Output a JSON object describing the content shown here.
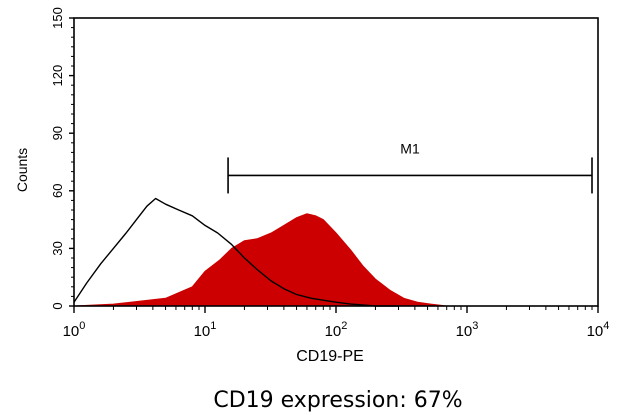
{
  "chart_data": {
    "type": "area",
    "xscale": "log",
    "xlim": [
      1,
      10000
    ],
    "ylim": [
      0,
      150
    ],
    "xlabel": "CD19-PE",
    "ylabel": "Counts",
    "caption": "CD19 expression: 67%",
    "x_ticks": [
      {
        "value": 1,
        "base": "10",
        "exp": "0"
      },
      {
        "value": 10,
        "base": "10",
        "exp": "1"
      },
      {
        "value": 100,
        "base": "10",
        "exp": "2"
      },
      {
        "value": 1000,
        "base": "10",
        "exp": "3"
      },
      {
        "value": 10000,
        "base": "10",
        "exp": "4"
      }
    ],
    "y_ticks": [
      {
        "value": 0,
        "label": "0"
      },
      {
        "value": 30,
        "label": "30"
      },
      {
        "value": 60,
        "label": "60"
      },
      {
        "value": 90,
        "label": "90"
      },
      {
        "value": 120,
        "label": "120"
      },
      {
        "value": 150,
        "label": "150"
      }
    ],
    "marker": {
      "label": "M1",
      "x_start": 15,
      "x_end": 9000,
      "y": 68
    },
    "series": [
      {
        "style": "filled",
        "color": "#cc0000",
        "x": [
          1,
          2,
          5,
          8,
          10,
          13,
          16,
          20,
          25,
          32,
          40,
          50,
          60,
          70,
          80,
          100,
          130,
          160,
          200,
          260,
          330,
          420,
          530,
          700,
          1000
        ],
        "y": [
          0,
          1,
          4,
          10,
          18,
          24,
          30,
          34,
          35,
          38,
          42,
          46,
          48,
          47,
          45,
          38,
          29,
          21,
          14,
          8,
          4,
          2,
          1,
          0,
          0
        ]
      },
      {
        "style": "line",
        "color": "#000000",
        "x": [
          1,
          1.25,
          1.6,
          2,
          2.5,
          3,
          3.6,
          4.2,
          5,
          6.3,
          8,
          10,
          12.5,
          16,
          20,
          25,
          32,
          40,
          50,
          65,
          80,
          100,
          130,
          200,
          300
        ],
        "y": [
          2,
          12,
          22,
          30,
          38,
          45,
          52,
          56,
          53,
          50,
          47,
          42,
          38,
          32,
          25,
          19,
          13,
          9,
          6,
          4,
          3,
          2,
          1,
          0,
          0
        ]
      }
    ]
  }
}
